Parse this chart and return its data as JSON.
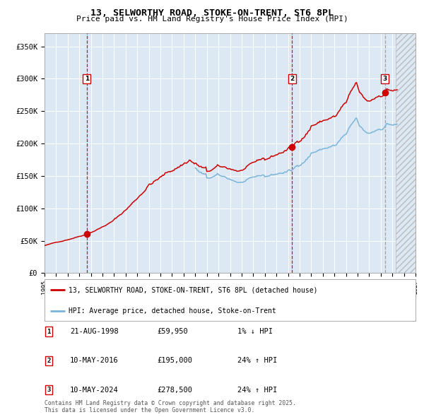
{
  "title": "13, SELWORTHY ROAD, STOKE-ON-TRENT, ST6 8PL",
  "subtitle": "Price paid vs. HM Land Registry's House Price Index (HPI)",
  "legend_line1": "13, SELWORTHY ROAD, STOKE-ON-TRENT, ST6 8PL (detached house)",
  "legend_line2": "HPI: Average price, detached house, Stoke-on-Trent",
  "footer": "Contains HM Land Registry data © Crown copyright and database right 2025.\nThis data is licensed under the Open Government Licence v3.0.",
  "hpi_color": "#7ab5d9",
  "price_color": "#cc0000",
  "sale_color": "#cc0000",
  "bg_color": "#dce9f5",
  "grid_color": "#ffffff",
  "vline_color": "#cc0000",
  "vline3_color": "#999999",
  "sales": [
    {
      "label": "1",
      "date": "21-AUG-1998",
      "price": 59950,
      "price_str": "£59,950",
      "pct": "1%",
      "dir": "↓",
      "year": 1998.64
    },
    {
      "label": "2",
      "date": "10-MAY-2016",
      "price": 195000,
      "price_str": "£195,000",
      "pct": "24%",
      "dir": "↑",
      "year": 2016.36
    },
    {
      "label": "3",
      "date": "10-MAY-2024",
      "price": 278500,
      "price_str": "£278,500",
      "pct": "24%",
      "dir": "↑",
      "year": 2024.36
    }
  ],
  "xmin": 1995,
  "xmax": 2027,
  "ymin": 0,
  "ymax": 370000,
  "yticks": [
    0,
    50000,
    100000,
    150000,
    200000,
    250000,
    300000,
    350000
  ],
  "ytick_labels": [
    "£0",
    "£50K",
    "£100K",
    "£150K",
    "£200K",
    "£250K",
    "£300K",
    "£350K"
  ],
  "hatch_start": 2025.3,
  "hpi_start_year": 2008.0
}
